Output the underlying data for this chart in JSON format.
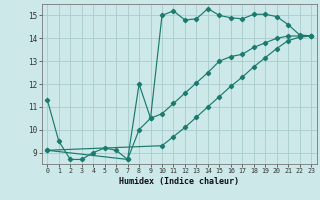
{
  "xlabel": "Humidex (Indice chaleur)",
  "bg_color": "#cce8e8",
  "line_color": "#1a7a6e",
  "grid_color": "#aacccc",
  "xlim": [
    -0.5,
    23.5
  ],
  "ylim": [
    8.5,
    15.5
  ],
  "yticks": [
    9,
    10,
    11,
    12,
    13,
    14,
    15
  ],
  "xticks": [
    0,
    1,
    2,
    3,
    4,
    5,
    6,
    7,
    8,
    9,
    10,
    11,
    12,
    13,
    14,
    15,
    16,
    17,
    18,
    19,
    20,
    21,
    22,
    23
  ],
  "series1_x": [
    0,
    1,
    2,
    3,
    4,
    5,
    6,
    7,
    8,
    9,
    10,
    11,
    12,
    13,
    14,
    15,
    16,
    17,
    18,
    19,
    20,
    21,
    22,
    23
  ],
  "series1_y": [
    11.3,
    9.5,
    8.7,
    8.7,
    9.0,
    9.2,
    9.1,
    8.7,
    10.0,
    10.5,
    15.0,
    15.2,
    14.8,
    14.85,
    15.3,
    15.0,
    14.9,
    14.85,
    15.05,
    15.05,
    14.95,
    14.6,
    14.15,
    14.1
  ],
  "series2_x": [
    0,
    7,
    8,
    9,
    10,
    11,
    12,
    13,
    14,
    15,
    16,
    17,
    18,
    19,
    20,
    21,
    22,
    23
  ],
  "series2_y": [
    9.1,
    8.7,
    12.0,
    10.5,
    10.7,
    11.15,
    11.6,
    12.05,
    12.5,
    13.0,
    13.2,
    13.3,
    13.6,
    13.8,
    14.0,
    14.1,
    14.1,
    14.1
  ],
  "series3_x": [
    0,
    10,
    11,
    12,
    13,
    14,
    15,
    16,
    17,
    18,
    19,
    20,
    21,
    22,
    23
  ],
  "series3_y": [
    9.1,
    9.3,
    9.7,
    10.1,
    10.55,
    11.0,
    11.45,
    11.9,
    12.3,
    12.75,
    13.15,
    13.55,
    13.9,
    14.05,
    14.1
  ]
}
